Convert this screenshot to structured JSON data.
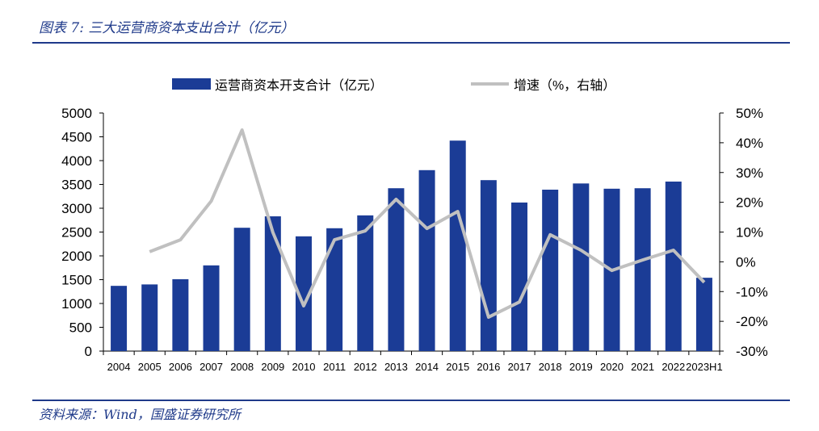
{
  "title": "图表 7:  三大运营商资本支出合计（亿元）",
  "source": "资料来源：Wind，国盛证券研究所",
  "colors": {
    "bar": "#1b3c96",
    "line": "#c0c0c0",
    "accent": "#1f3a8a"
  },
  "chart_data": {
    "type": "bar",
    "categories": [
      "2004",
      "2005",
      "2006",
      "2007",
      "2008",
      "2009",
      "2010",
      "2011",
      "2012",
      "2013",
      "2014",
      "2015",
      "2016",
      "2017",
      "2018",
      "2019",
      "2020",
      "2021",
      "2022",
      "2023H1"
    ],
    "series": [
      {
        "name": "运营商资本开支合计（亿元）",
        "type": "bar",
        "axis": "left",
        "values": [
          1370,
          1400,
          1510,
          1800,
          2590,
          2830,
          2410,
          2580,
          2850,
          3420,
          3800,
          4420,
          3590,
          3120,
          3390,
          3520,
          3410,
          3420,
          3560,
          1540
        ]
      },
      {
        "name": "增速（%，右轴）",
        "type": "line",
        "axis": "right",
        "values": [
          null,
          3.4,
          7.4,
          20.4,
          44.3,
          9.9,
          -14.8,
          7.4,
          10.4,
          21.0,
          11.2,
          16.9,
          -18.6,
          -13.5,
          9.1,
          3.9,
          -2.9,
          0.6,
          3.9,
          -6.9
        ]
      }
    ],
    "left_axis": {
      "ylim": [
        0,
        5000
      ],
      "ticks": [
        "0",
        "500",
        "1000",
        "1500",
        "2000",
        "2500",
        "3000",
        "3500",
        "4000",
        "4500",
        "5000"
      ]
    },
    "right_axis": {
      "ylim": [
        -30,
        50
      ],
      "ticks": [
        "-30%",
        "-20%",
        "-10%",
        "0%",
        "10%",
        "20%",
        "30%",
        "40%",
        "50%"
      ]
    },
    "legend_position": "top",
    "grid": false
  }
}
